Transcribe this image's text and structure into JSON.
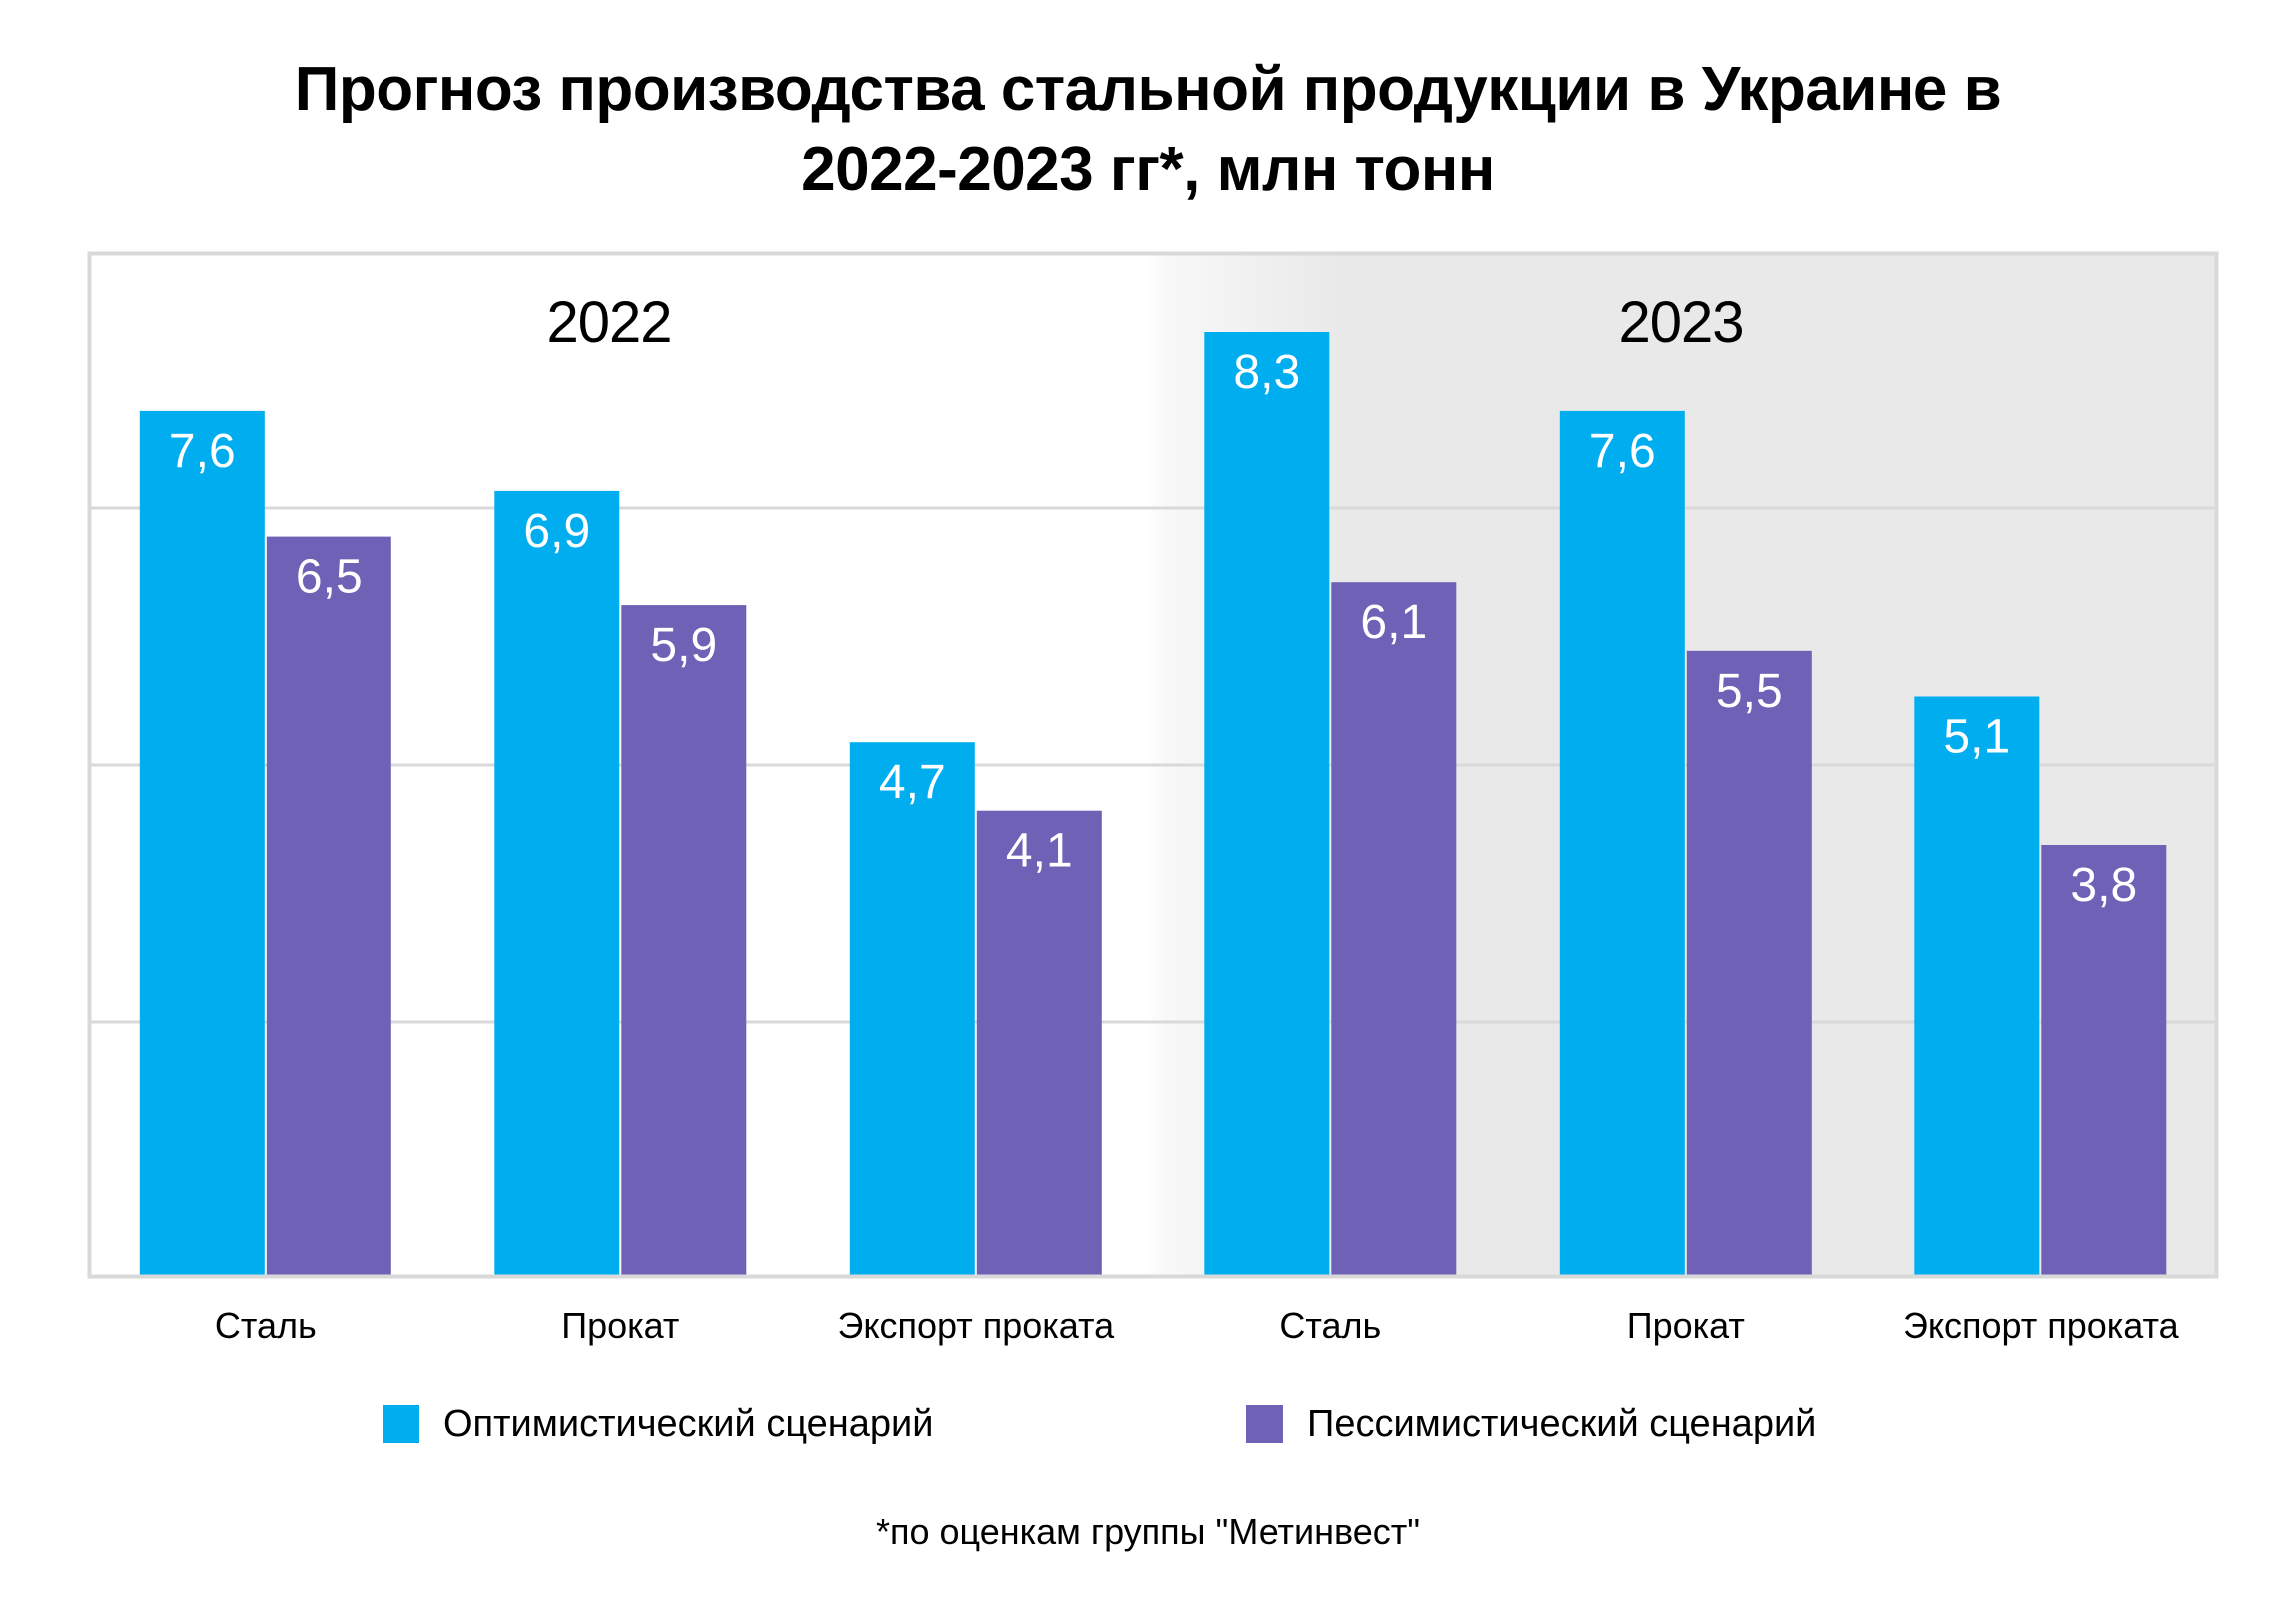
{
  "title": {
    "line1": "Прогноз производства стальной продукции в Украине в",
    "line2": "2022-2023 гг*, млн тонн"
  },
  "footnote": "*по оценкам группы \"Метинвест\"",
  "colors": {
    "optimistic": "#00AEEF",
    "pessimistic": "#6F62B6",
    "panel_2023_bg": "#E9E9E9",
    "border": "#D9D9D9",
    "gridline": "#D9D9D9"
  },
  "chart_data": {
    "type": "bar",
    "title": "Прогноз производства стальной продукции в Украине в 2022-2023 гг*, млн тонн",
    "xlabel": "",
    "ylabel": "млн тонн",
    "ylim": [
      0,
      9
    ],
    "gridlines": [
      2.25,
      4.5,
      6.75
    ],
    "grid": true,
    "y_tick_labels_visible": false,
    "legend_position": "bottom",
    "panels": [
      {
        "label": "2022",
        "categories": [
          "Сталь",
          "Прокат",
          "Экспорт проката"
        ]
      },
      {
        "label": "2023",
        "categories": [
          "Сталь",
          "Прокат",
          "Экспорт проката"
        ]
      }
    ],
    "categories": [
      "Сталь",
      "Прокат",
      "Экспорт проката",
      "Сталь",
      "Прокат",
      "Экспорт проката"
    ],
    "series": [
      {
        "name": "Оптимистический сценарий",
        "color": "#00AEEF",
        "values": [
          7.6,
          6.9,
          4.7,
          8.3,
          7.6,
          5.1
        ],
        "labels": [
          "7,6",
          "6,9",
          "4,7",
          "8,3",
          "7,6",
          "5,1"
        ]
      },
      {
        "name": "Пессимистический сценарий",
        "color": "#6F62B6",
        "values": [
          6.5,
          5.9,
          4.1,
          6.1,
          5.5,
          3.8
        ],
        "labels": [
          "6,5",
          "5,9",
          "4,1",
          "6,1",
          "5,5",
          "3,8"
        ]
      }
    ]
  }
}
